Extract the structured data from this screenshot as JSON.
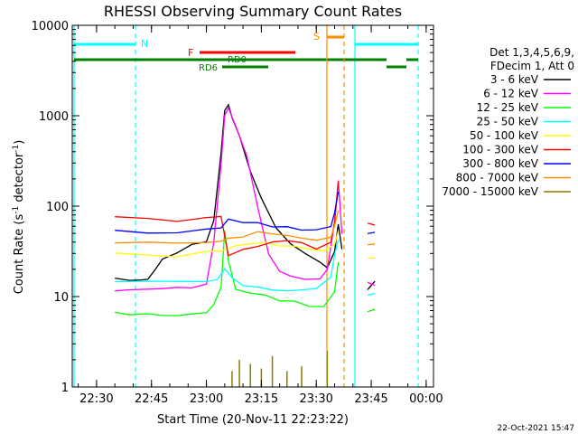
{
  "chart_data": {
    "type": "line",
    "title": "RHESSI Observing Summary Count Rates",
    "xlabel": "Start Time (20-Nov-11 22:23:22)",
    "ylabel_main": "Count Rate (s",
    "ylabel_exp1": "-1",
    "ylabel_mid": " detector",
    "ylabel_exp2": "-1",
    "ylabel_end": ")",
    "footer": "22-Oct-2021 15:47",
    "y_scale": "log",
    "ylim": [
      1,
      10000
    ],
    "xlim": [
      "22:23:22",
      "00:02:00"
    ],
    "x_ticks": [
      "22:30",
      "22:45",
      "23:00",
      "23:15",
      "23:30",
      "23:45",
      "00:00"
    ],
    "y_ticks": [
      "1",
      "10",
      "100",
      "1000",
      "10000"
    ],
    "legend_header": [
      "Det 1,3,4,5,6,9,",
      "FDecim 1, Att 0"
    ],
    "series": [
      {
        "name": "3 - 6 keV",
        "color": "#000000",
        "x": [
          "22:35",
          "22:39",
          "22:42",
          "22:44",
          "22:46",
          "22:48",
          "22:52",
          "22:56",
          "23:00",
          "23:02",
          "23:04",
          "23:05",
          "23:06",
          "23:07",
          "23:09",
          "23:12",
          "23:15",
          "23:19",
          "23:23",
          "23:27",
          "23:31",
          "23:33",
          "23:35",
          "23:36",
          "23:37",
          "23:44",
          "23:46"
        ],
        "y": [
          16,
          15,
          16,
          16,
          20,
          26,
          32,
          36,
          40,
          70,
          400,
          1100,
          1300,
          1000,
          600,
          250,
          120,
          60,
          38,
          30,
          25,
          22,
          30,
          60,
          35,
          12,
          14
        ]
      },
      {
        "name": "6 - 12 keV",
        "color": "#ff00ff",
        "x": [
          "22:35",
          "22:39",
          "22:44",
          "22:48",
          "22:52",
          "22:56",
          "23:00",
          "23:02",
          "23:04",
          "23:05",
          "23:06",
          "23:08",
          "23:11",
          "23:14",
          "23:17",
          "23:20",
          "23:23",
          "23:27",
          "23:31",
          "23:33",
          "23:35",
          "23:36",
          "23:37",
          "23:44",
          "23:46"
        ],
        "y": [
          12,
          12,
          12,
          12,
          13,
          13,
          13,
          40,
          300,
          1000,
          1250,
          800,
          350,
          100,
          30,
          20,
          16,
          16,
          15,
          20,
          70,
          190,
          50,
          14,
          13
        ]
      },
      {
        "name": "12 - 25 keV",
        "color": "#00ff00",
        "x": [
          "22:35",
          "22:39",
          "22:44",
          "22:48",
          "22:52",
          "22:56",
          "23:00",
          "23:02",
          "23:04",
          "23:05",
          "23:06",
          "23:08",
          "23:12",
          "23:16",
          "23:20",
          "23:24",
          "23:28",
          "23:32",
          "23:35",
          "23:36",
          "23:44",
          "23:46"
        ],
        "y": [
          7,
          6.5,
          6.5,
          6.5,
          6.5,
          6.5,
          6.5,
          8,
          12,
          55,
          25,
          12,
          11,
          10,
          9,
          9,
          8,
          8,
          11,
          25,
          7,
          7
        ]
      },
      {
        "name": "25 - 50 keV",
        "color": "#00ffff",
        "x": [
          "22:35",
          "22:44",
          "22:52",
          "23:00",
          "23:03",
          "23:05",
          "23:07",
          "23:10",
          "23:14",
          "23:18",
          "23:22",
          "23:26",
          "23:30",
          "23:34",
          "23:35",
          "23:36",
          "23:44",
          "23:46"
        ],
        "y": [
          14,
          14,
          14,
          14,
          15,
          20,
          16,
          14,
          13,
          12,
          12,
          12,
          12,
          16,
          30,
          40,
          11,
          11
        ]
      },
      {
        "name": "50 - 100 keV",
        "color": "#ffff00",
        "x": [
          "22:35",
          "22:44",
          "22:52",
          "23:00",
          "23:04",
          "23:08",
          "23:12",
          "23:16",
          "23:20",
          "23:24",
          "23:28",
          "23:32",
          "23:35",
          "23:36",
          "23:44",
          "23:46"
        ],
        "y": [
          30,
          29,
          29,
          30,
          32,
          35,
          38,
          40,
          38,
          35,
          32,
          33,
          40,
          55,
          26,
          26
        ]
      },
      {
        "name": "100 - 300 keV",
        "color": "#ff0000",
        "x": [
          "22:35",
          "22:44",
          "22:52",
          "23:00",
          "23:04",
          "23:06",
          "23:10",
          "23:14",
          "23:18",
          "23:22",
          "23:26",
          "23:30",
          "23:34",
          "23:35",
          "23:36",
          "23:44",
          "23:46"
        ],
        "y": [
          75,
          70,
          70,
          72,
          80,
          30,
          35,
          38,
          40,
          40,
          38,
          35,
          40,
          70,
          190,
          65,
          65
        ]
      },
      {
        "name": "300 - 800 keV",
        "color": "#0000ff",
        "x": [
          "22:35",
          "22:44",
          "22:52",
          "23:00",
          "23:04",
          "23:06",
          "23:10",
          "23:14",
          "23:18",
          "23:22",
          "23:26",
          "23:30",
          "23:34",
          "23:35",
          "23:36",
          "23:44",
          "23:46"
        ],
        "y": [
          55,
          52,
          52,
          54,
          60,
          75,
          70,
          65,
          62,
          60,
          57,
          55,
          60,
          90,
          140,
          50,
          50
        ]
      },
      {
        "name": "800 - 7000 keV",
        "color": "#ff8c00",
        "x": [
          "22:35",
          "22:44",
          "22:52",
          "23:00",
          "23:04",
          "23:06",
          "23:10",
          "23:14",
          "23:18",
          "23:22",
          "23:26",
          "23:30",
          "23:34",
          "23:35",
          "23:36",
          "23:44",
          "23:46"
        ],
        "y": [
          40,
          38,
          38,
          39,
          42,
          45,
          48,
          50,
          52,
          50,
          46,
          43,
          48,
          60,
          90,
          38,
          38
        ]
      },
      {
        "name": "7000 - 15000 keV",
        "color": "#8b7d00",
        "x": [
          "23:07",
          "23:09",
          "23:12",
          "23:15",
          "23:18",
          "23:22",
          "23:26",
          "23:33"
        ],
        "y": [
          1.5,
          2,
          1.8,
          1.6,
          2.2,
          1.5,
          1.7,
          2.5
        ]
      }
    ],
    "flags": [
      {
        "label": "N",
        "color": "#00ffff"
      },
      {
        "label": "F",
        "color": "#ff0000"
      },
      {
        "label": "RD0",
        "color": "#008000"
      },
      {
        "label": "RD6",
        "color": "#008000"
      },
      {
        "label": "S",
        "color": "#ff8c00"
      }
    ]
  }
}
